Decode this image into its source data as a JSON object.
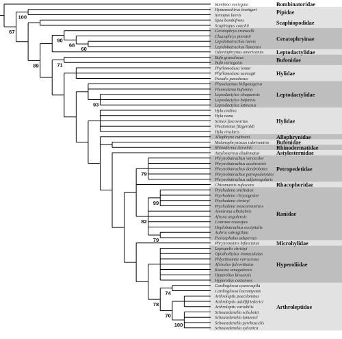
{
  "colors": {
    "band_dark": "#bebebe",
    "band_light": "#e2e2e2",
    "branch": "#000000"
  },
  "taxa": [
    "Bombina variegata",
    "Hymenochirus boettgeri",
    "Xenopus laevis",
    "Spea bombifrons",
    "Scaphiopus couchii",
    "Ceratophrys cranwelli",
    "Chacophrys pierottii",
    "Lepidobatrachus laevis",
    "Lepidobatrachus llanensis",
    "Odontophrynus americanus",
    "Bufo granulosus",
    "Bufo variegatus",
    "Phyllomedusa lemur",
    "Phyllomedusa sauvagii",
    "Pseudis paradoxus",
    "Physalaemus biligonigerus",
    "Pleurodema bufonina",
    "Leptodactylus chaquensis",
    "Leptodactylus bufonius",
    "Leptodactylus latinasus",
    "Hyla andina",
    "Hyla nana",
    "Scinax fuscovarius",
    "Plectonotus fitzgeraldi",
    "Hyla rivularis",
    "Allophryne ruthveni",
    "Melanophryniscus rubriventris",
    "Rhinoderma darwinii",
    "Astylosternus diadematus",
    "Phrynobatrachus versicolor",
    "Phrynobatrachus acutirostris",
    "Phrynobatrachus dendrobates",
    "Phrynobatrachus petropedetoides",
    "Phrynobatrachus sulfureogularis",
    "Chiromantis rufescens",
    "Ptychadena anchietae",
    "Ptychadena chrysogaster",
    "Ptychadena christyi",
    "Ptychadena mascareniensis",
    "Amnirana albolabris",
    "Afrana angolensis",
    "Conraua crassipes",
    "Hoplobatrachus occipitalis",
    "Aubria subsigillata",
    "Pyxicephalus adspersus",
    "Phrynomantis bifasciatus",
    "Leptopelis christyi",
    "Opisthothylax immaculatus",
    "Phlyctimantis verrucosus",
    "Afrixalus fulvovittatus",
    "Kassina senegalensis",
    "Hyperolius kivuensis",
    "Hyperolius castaneus",
    "Cardioglossa cyaneospila",
    "Cardioglossa leucomystax",
    "Arthroleptis poecilonotus",
    "Arthroleptis adolfifriederici",
    "Arthroleptis variabilis",
    "Schoutedenella schubotzi",
    "Schoutedenella lameerei",
    "Schoutedenella pyrrhoscelis",
    "Schoutedenella sylvatica"
  ],
  "families": [
    {
      "name": "Bombinatoridae",
      "start": 0,
      "end": 0,
      "shade": "none"
    },
    {
      "name": "Pipidae",
      "start": 1,
      "end": 2,
      "shade": "light"
    },
    {
      "name": "Scaphiopodidae",
      "start": 3,
      "end": 4,
      "shade": "light"
    },
    {
      "name": "Ceratophryinae",
      "start": 5,
      "end": 8,
      "shade": "dark"
    },
    {
      "name": "Leptodactylidae",
      "start": 9,
      "end": 9,
      "shade": "light"
    },
    {
      "name": "Bufonidae",
      "start": 10,
      "end": 11,
      "shade": "dark"
    },
    {
      "name": "Hylidae",
      "start": 12,
      "end": 14,
      "shade": "light"
    },
    {
      "name": "Leptodactylidae",
      "start": 15,
      "end": 19,
      "shade": "dark"
    },
    {
      "name": "Hylidae",
      "start": 20,
      "end": 24,
      "shade": "light"
    },
    {
      "name": "Allophrynidae",
      "start": 25,
      "end": 25,
      "shade": "dark"
    },
    {
      "name": "Bufonidae",
      "start": 26,
      "end": 26,
      "shade": "light"
    },
    {
      "name": "Rhinodermatidae",
      "start": 27,
      "end": 27,
      "shade": "dark"
    },
    {
      "name": "Astylosternidae",
      "start": 28,
      "end": 28,
      "shade": "light"
    },
    {
      "name": "Petropedetidae",
      "start": 29,
      "end": 33,
      "shade": "dark"
    },
    {
      "name": "Rhacophoridae",
      "start": 34,
      "end": 34,
      "shade": "light"
    },
    {
      "name": "Ranidae",
      "start": 35,
      "end": 44,
      "shade": "dark"
    },
    {
      "name": "Microhylidae",
      "start": 45,
      "end": 45,
      "shade": "light"
    },
    {
      "name": "Hyperoliidae",
      "start": 46,
      "end": 52,
      "shade": "dark"
    },
    {
      "name": "Arthroleptidae",
      "start": 53,
      "end": 61,
      "shade": "light"
    }
  ],
  "tree": {
    "c": [
      0,
      {
        "c": [
          {
            "c": [
              1,
              2
            ],
            "s": "100"
          },
          {
            "c": [
              {
                "c": [
                  3,
                  4
                ]
              },
              {
                "c": [
                  {
                    "c": [
                      {
                        "c": [
                          5,
                          {
                            "c": [
                              6,
                              {
                                "c": [
                                  7,
                                  8
                                ],
                                "s": "60"
                              }
                            ],
                            "s": "68"
                          }
                        ],
                        "s": "90"
                      },
                      9
                    ]
                  },
                  {
                    "c": [
                      {
                        "c": [
                          10,
                          11
                        ],
                        "s": "71"
                      },
                      {
                        "c": [
                          {
                            "c": [
                              12,
                              13,
                              14
                            ]
                          },
                          {
                            "c": [
                              {
                                "c": [
                                  15,
                                  16,
                                  {
                                    "c": [
                                      17,
                                      18,
                                      19
                                    ],
                                    "s": "93"
                                  }
                                ]
                              },
                              {
                                "c": [
                                  {
                                    "c": [
                                      20,
                                      21,
                                      22,
                                      23,
                                      24
                                    ]
                                  },
                                  {
                                    "c": [
                                      25,
                                      {
                                        "c": [
                                          26,
                                          27
                                        ]
                                      },
                                      {
                                        "c": [
                                          28,
                                          {
                                            "c": [
                                              {
                                                "c": [
                                                  {
                                                    "c": [
                                                      29,
                                                      30,
                                                      31,
                                                      32,
                                                      33
                                                    ],
                                                    "s": "79"
                                                  },
                                                  34,
                                                  {
                                                    "c": [
                                                      {
                                                        "c": [
                                                          35,
                                                          36,
                                                          37,
                                                          38
                                                        ],
                                                        "s": "99"
                                                      },
                                                      39,
                                                      40,
                                                      41,
                                                      42,
                                                      {
                                                        "c": [
                                                          43,
                                                          44
                                                        ],
                                                        "s": "79"
                                                      }
                                                    ],
                                                    "s": "82"
                                                  }
                                                ]
                                              },
                                              {
                                                "c": [
                                                  45,
                                                  {
                                                    "c": [
                                                      {
                                                        "c": [
                                                          46,
                                                          47,
                                                          48,
                                                          49,
                                                          50,
                                                          51,
                                                          52
                                                        ]
                                                      },
                                                      {
                                                        "c": [
                                                          {
                                                            "c": [
                                                              53,
                                                              54
                                                            ],
                                                            "s": "74"
                                                          },
                                                          {
                                                            "c": [
                                                              {
                                                                "c": [
                                                                  55,
                                                                  56,
                                                                  57
                                                                ]
                                                              },
                                                              {
                                                                "c": [
                                                                  58,
                                                                  59,
                                                                  60,
                                                                  61
                                                                ],
                                                                "s": "100"
                                                              }
                                                            ],
                                                            "s": "70"
                                                          }
                                                        ],
                                                        "s": "78"
                                                      }
                                                    ]
                                                  }
                                                ]
                                              }
                                            ]
                                          }
                                        ]
                                      }
                                    ]
                                  }
                                ]
                              }
                            ]
                          }
                        ]
                      }
                    ]
                  }
                ],
                "s": "89"
              }
            ]
          }
        ],
        "s": "67"
      }
    ]
  }
}
